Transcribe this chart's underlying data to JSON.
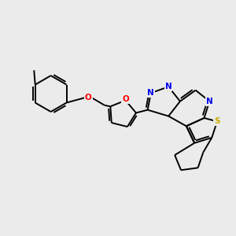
{
  "bg_color": "#ebebeb",
  "atom_colors": {
    "N": "#0000ee",
    "O": "#ff0000",
    "S": "#ccaa00",
    "C": "#000000"
  },
  "bond_color": "#000000",
  "lw": 1.4
}
